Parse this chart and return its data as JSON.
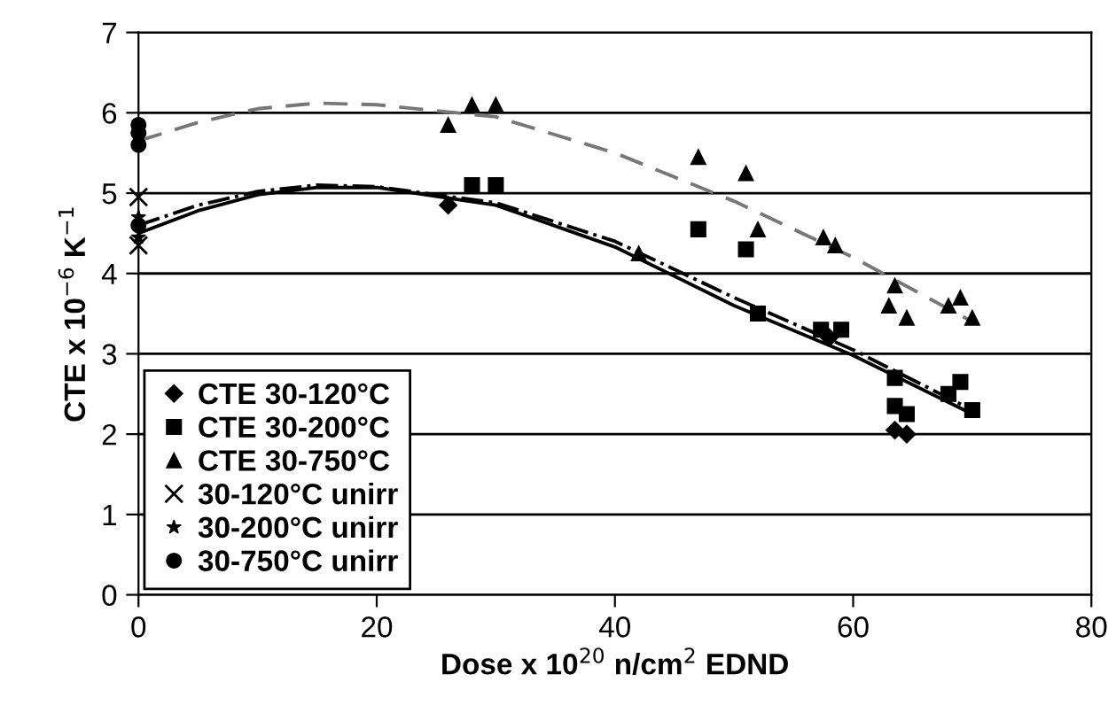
{
  "chart_data": {
    "type": "scatter",
    "xlabel": "Dose x 10$^{20}$ n/cm$^{2}$ EDND",
    "ylabel": "CTE x 10$^{−6}$ K$^{−1}$",
    "xlim": [
      0,
      80
    ],
    "ylim": [
      0,
      7
    ],
    "xticks": [
      0,
      20,
      40,
      60,
      80
    ],
    "yticks": [
      0,
      1,
      2,
      3,
      4,
      5,
      6,
      7
    ],
    "grid": "y",
    "legend": "bottom left",
    "series": [
      {
        "name": "CTE 30-120°C",
        "color": "#000000",
        "marker": "diamond",
        "x": [
          26,
          58,
          63.5,
          64.5
        ],
        "values": [
          4.85,
          3.2,
          2.05,
          2.0
        ]
      },
      {
        "name": "CTE 30-200°C",
        "color": "#000000",
        "marker": "square",
        "x": [
          28,
          30,
          47,
          51,
          52,
          57.3,
          59,
          63.5,
          64.5,
          63.5,
          68,
          69,
          70
        ],
        "values": [
          5.1,
          5.1,
          4.55,
          4.3,
          3.5,
          3.3,
          3.3,
          2.35,
          2.25,
          2.7,
          2.5,
          2.65,
          2.3
        ]
      },
      {
        "name": "CTE 30-750°C",
        "color": "#000000",
        "marker": "triangle",
        "x": [
          26,
          28,
          30,
          42,
          47,
          51,
          52,
          57.5,
          58.5,
          63.5,
          63,
          64.5,
          68,
          69,
          70
        ],
        "values": [
          5.85,
          6.1,
          6.1,
          4.25,
          5.45,
          5.25,
          4.55,
          4.45,
          4.35,
          3.85,
          3.6,
          3.45,
          3.6,
          3.7,
          3.45
        ]
      },
      {
        "name": "30-120°C unirr",
        "color": "#000000",
        "marker": "cross",
        "x": [
          0,
          0
        ],
        "values": [
          4.35,
          4.95
        ]
      },
      {
        "name": "30-200°C unirr",
        "color": "#000000",
        "marker": "star",
        "x": [
          0,
          0
        ],
        "values": [
          4.45,
          4.7
        ]
      },
      {
        "name": "30-750°C unirr",
        "color": "#000000",
        "marker": "circle",
        "x": [
          0,
          0,
          0,
          0
        ],
        "values": [
          5.6,
          5.75,
          5.85,
          4.6
        ]
      },
      {
        "type": "line",
        "color": "#000000",
        "marker": "none",
        "line_style": "solid",
        "x": [
          0,
          5,
          10,
          15,
          20,
          30,
          40,
          50,
          60,
          70
        ],
        "values": [
          4.5,
          4.78,
          4.98,
          5.07,
          5.07,
          4.85,
          4.33,
          3.6,
          2.98,
          2.25
        ]
      },
      {
        "type": "line",
        "color": "#000000",
        "marker": "none",
        "line_style": "dashdot",
        "x": [
          0,
          5,
          10,
          15,
          20,
          30,
          40,
          50,
          60,
          70
        ],
        "values": [
          4.6,
          4.85,
          5.02,
          5.1,
          5.08,
          4.88,
          4.4,
          3.7,
          3.05,
          2.3
        ]
      },
      {
        "type": "line",
        "color": "#777777",
        "marker": "none",
        "line_style": "dashed",
        "x": [
          0,
          5,
          10,
          15,
          20,
          30,
          40,
          50,
          60,
          70
        ],
        "values": [
          5.65,
          5.88,
          6.05,
          6.12,
          6.1,
          5.95,
          5.5,
          4.9,
          4.2,
          3.4
        ]
      }
    ]
  }
}
